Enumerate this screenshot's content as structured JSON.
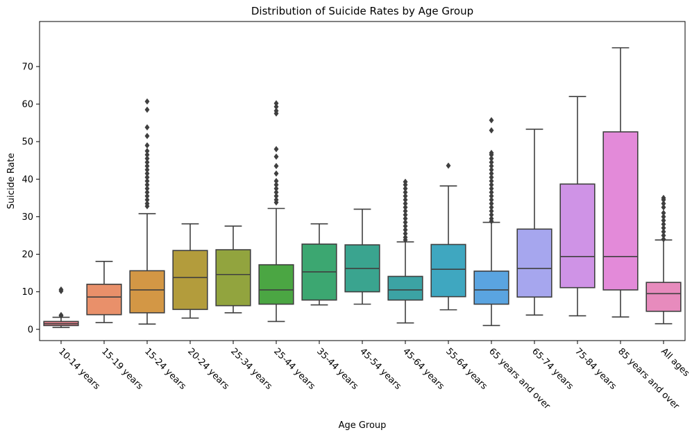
{
  "chart_data": {
    "type": "box",
    "title": "Distribution of Suicide Rates by Age Group",
    "xlabel": "Age Group",
    "ylabel": "Suicide Rate",
    "ylim": [
      -3,
      82
    ],
    "yticks": [
      0,
      10,
      20,
      30,
      40,
      50,
      60,
      70
    ],
    "grid": false,
    "categories": [
      "10-14 years",
      "15-19 years",
      "15-24 years",
      "20-24 years",
      "25-34 years",
      "25-44 years",
      "35-44 years",
      "45-54 years",
      "45-64 years",
      "55-64 years",
      "65 years and over",
      "65-74 years",
      "75-84 years",
      "85 years and over",
      "All ages"
    ],
    "boxes": [
      {
        "whislo": 0.5,
        "q1": 1.0,
        "med": 1.5,
        "q3": 2.1,
        "whishi": 3.2,
        "fliers": [
          3.6,
          3.8,
          10.2,
          10.6
        ],
        "color": "#e1808a"
      },
      {
        "whislo": 1.8,
        "q1": 3.9,
        "med": 8.6,
        "q3": 12.0,
        "whishi": 18.1,
        "fliers": [],
        "color": "#e9906a"
      },
      {
        "whislo": 1.4,
        "q1": 4.4,
        "med": 10.5,
        "q3": 15.6,
        "whishi": 30.8,
        "fliers": [
          32.8,
          33.5,
          34.5,
          35.5,
          36.5,
          37.5,
          38.5,
          39.5,
          40.5,
          41.5,
          42.5,
          43.5,
          44.5,
          45.5,
          46.5,
          47.5,
          49.0,
          51.5,
          53.8,
          58.5,
          60.7
        ],
        "color": "#d39745"
      },
      {
        "whislo": 3.0,
        "q1": 5.3,
        "med": 13.8,
        "q3": 21.0,
        "whishi": 28.1,
        "fliers": [],
        "color": "#b39c3c"
      },
      {
        "whislo": 4.4,
        "q1": 6.3,
        "med": 14.6,
        "q3": 21.2,
        "whishi": 27.5,
        "fliers": [],
        "color": "#92a43e"
      },
      {
        "whislo": 2.1,
        "q1": 6.7,
        "med": 10.5,
        "q3": 17.2,
        "whishi": 32.2,
        "fliers": [
          33.8,
          34.5,
          35.5,
          36.5,
          37.5,
          38.5,
          39.5,
          41.5,
          43.5,
          46.0,
          48.0,
          57.5,
          58.2,
          59.3,
          60.2
        ],
        "color": "#4ba643"
      },
      {
        "whislo": 6.5,
        "q1": 7.8,
        "med": 15.3,
        "q3": 22.7,
        "whishi": 28.1,
        "fliers": [],
        "color": "#3ca771"
      },
      {
        "whislo": 6.7,
        "q1": 10.0,
        "med": 16.2,
        "q3": 22.5,
        "whishi": 32.0,
        "fliers": [],
        "color": "#3aa48f"
      },
      {
        "whislo": 1.7,
        "q1": 7.8,
        "med": 10.5,
        "q3": 14.1,
        "whishi": 23.3,
        "fliers": [
          23.8,
          24.5,
          25.5,
          26.5,
          27.5,
          28.5,
          29.5,
          30.5,
          31.5,
          32.5,
          33.5,
          34.5,
          35.5,
          36.5,
          37.5,
          38.5,
          39.3
        ],
        "color": "#3ca3a4"
      },
      {
        "whislo": 5.2,
        "q1": 8.7,
        "med": 16.0,
        "q3": 22.6,
        "whishi": 38.2,
        "fliers": [
          43.6
        ],
        "color": "#3fa7c0"
      },
      {
        "whislo": 1.0,
        "q1": 6.7,
        "med": 10.5,
        "q3": 15.5,
        "whishi": 28.5,
        "fliers": [
          28.8,
          29.5,
          30.5,
          31.5,
          32.5,
          33.5,
          34.5,
          35.5,
          36.5,
          37.5,
          38.5,
          39.5,
          40.5,
          41.5,
          42.5,
          43.5,
          44.5,
          45.5,
          46.5,
          47.0,
          53.0,
          55.7
        ],
        "color": "#5aa4e0"
      },
      {
        "whislo": 3.8,
        "q1": 8.6,
        "med": 16.2,
        "q3": 26.7,
        "whishi": 53.3,
        "fliers": [],
        "color": "#a6a6ee"
      },
      {
        "whislo": 3.6,
        "q1": 11.1,
        "med": 19.4,
        "q3": 38.7,
        "whishi": 62.0,
        "fliers": [],
        "color": "#cf93e6"
      },
      {
        "whislo": 3.3,
        "q1": 10.5,
        "med": 19.4,
        "q3": 52.6,
        "whishi": 75.0,
        "fliers": [],
        "color": "#e38ad9"
      },
      {
        "whislo": 1.5,
        "q1": 4.8,
        "med": 9.5,
        "q3": 12.5,
        "whishi": 23.8,
        "fliers": [
          24.0,
          25.0,
          26.0,
          27.0,
          28.0,
          29.0,
          30.0,
          31.0,
          32.5,
          33.5,
          34.5,
          35.0
        ],
        "color": "#e78bbd"
      }
    ]
  }
}
